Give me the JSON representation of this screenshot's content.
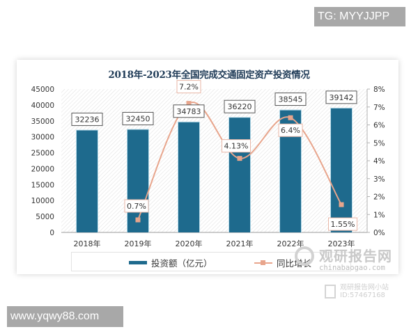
{
  "watermarks": {
    "top_right_tag": "TG: MYYJJPP",
    "bottom_left_tag": "www.yqwy88.com",
    "brand_main": "观研报告网",
    "brand_sub": "chinabaogao.com",
    "miniprogram_line1": "观研报告网小站",
    "miniprogram_line2": "ID:57467168"
  },
  "chart_data": {
    "type": "bar+line",
    "title": "2018年-2023年全国完成交通固定资产投资情况",
    "categories": [
      "2018年",
      "2019年",
      "2020年",
      "2021年",
      "2022年",
      "2023年"
    ],
    "series": [
      {
        "name": "投资额（亿元）",
        "type": "bar",
        "axis": "left",
        "color": "#1e6a8d",
        "values": [
          32236,
          32450,
          34783,
          36220,
          38545,
          39142
        ],
        "labels": [
          "32236",
          "32450",
          "34783",
          "36220",
          "38545",
          "39142"
        ]
      },
      {
        "name": "同比增长",
        "type": "line",
        "axis": "right",
        "color": "#e8a58c",
        "values": [
          null,
          0.7,
          7.2,
          4.13,
          6.4,
          1.55
        ],
        "labels": [
          "",
          "0.7%",
          "7.2%",
          "4.13%",
          "6.4%",
          "1.55%"
        ]
      }
    ],
    "left_axis": {
      "ylim": [
        0,
        45000
      ],
      "ticks": [
        "0",
        "5000",
        "10000",
        "15000",
        "20000",
        "25000",
        "30000",
        "35000",
        "40000",
        "45000"
      ]
    },
    "right_axis": {
      "ylim": [
        0,
        8
      ],
      "ticks": [
        "0%",
        "1%",
        "2%",
        "3%",
        "4%",
        "5%",
        "6%",
        "7%",
        "8%"
      ]
    },
    "legend": {
      "position": "bottom",
      "entries": [
        "投资额（亿元）",
        "同比增长"
      ]
    },
    "grid": false
  }
}
